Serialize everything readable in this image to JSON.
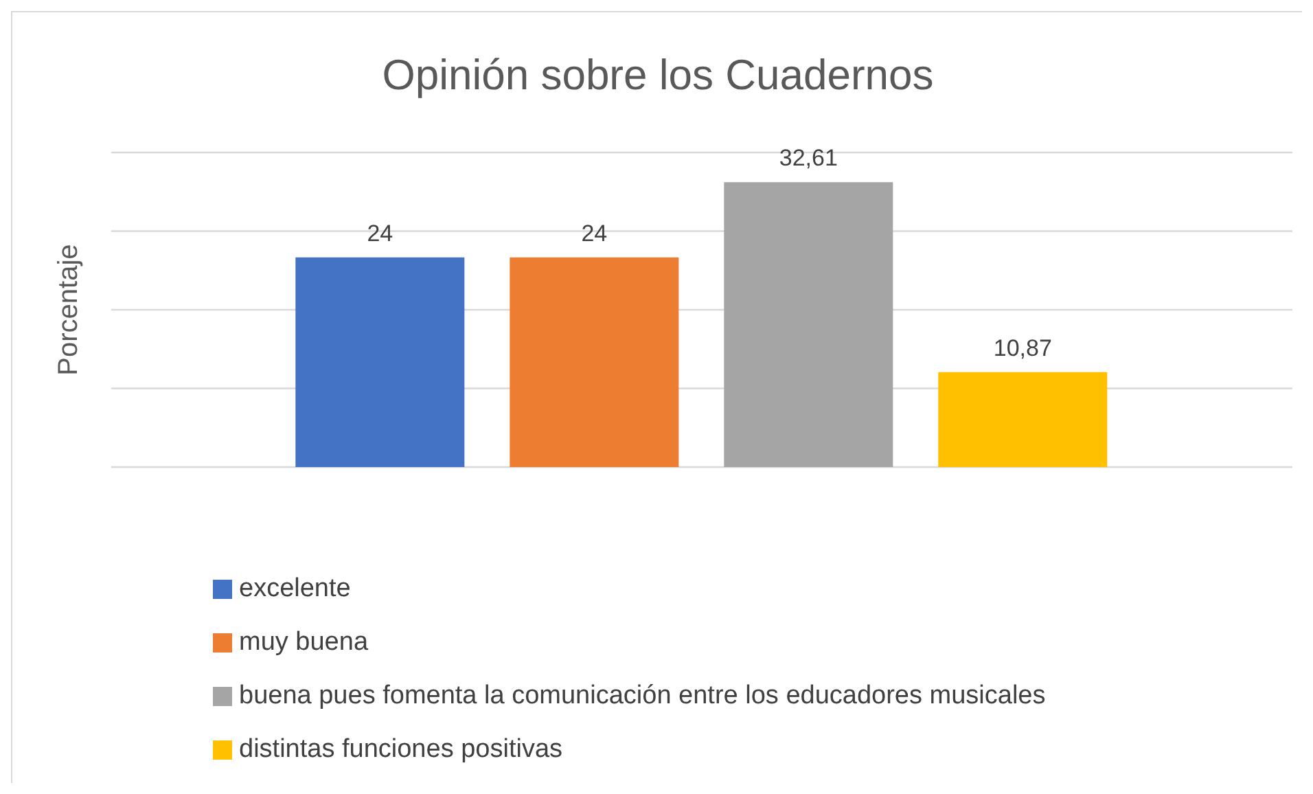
{
  "chart_data": {
    "type": "bar",
    "title": "Opinión sobre los Cuadernos",
    "ylabel": "Porcentaje",
    "categories": [
      null
    ],
    "series": [
      {
        "name": "excelente",
        "color": "#4472c4",
        "values": [
          24
        ],
        "value_labels": [
          "24"
        ]
      },
      {
        "name": "muy buena",
        "color": "#ed7d31",
        "values": [
          24
        ],
        "value_labels": [
          "24"
        ]
      },
      {
        "name": "buena pues fomenta la comunicación entre los educadores musicales",
        "color": "#a5a5a5",
        "values": [
          32.61
        ],
        "value_labels": [
          "32,61"
        ]
      },
      {
        "name": "distintas funciones positivas",
        "color": "#ffc000",
        "values": [
          10.87
        ],
        "value_labels": [
          "10,87"
        ]
      }
    ],
    "grid": "y",
    "legend": "bottom"
  }
}
